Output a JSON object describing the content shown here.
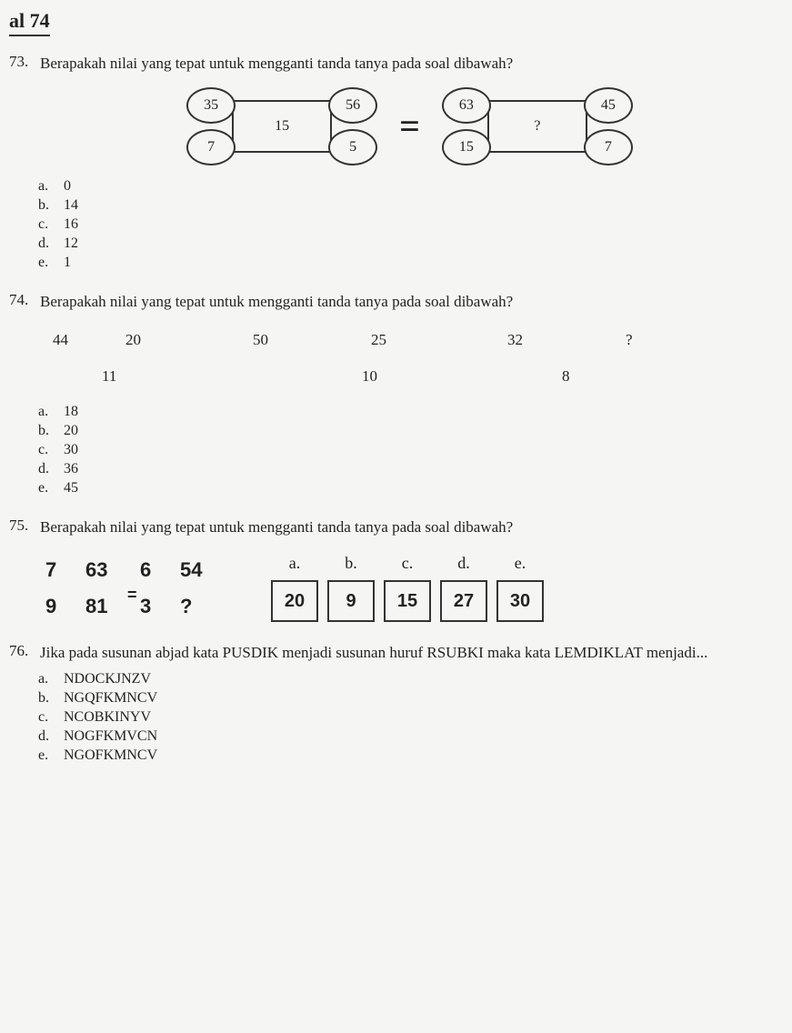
{
  "header": "al 74",
  "q73": {
    "num": "73.",
    "text": "Berapakah nilai yang tepat untuk mengganti tanda tanya pada soal dibawah?",
    "left": {
      "tl": "35",
      "bl": "7",
      "mid": "15",
      "tr": "56",
      "br": "5"
    },
    "eq": "=",
    "right": {
      "tl": "63",
      "bl": "15",
      "mid": "?",
      "tr": "45",
      "br": "7"
    },
    "options": [
      {
        "l": "a.",
        "v": "0"
      },
      {
        "l": "b.",
        "v": "14"
      },
      {
        "l": "c.",
        "v": "16"
      },
      {
        "l": "d.",
        "v": "12"
      },
      {
        "l": "e.",
        "v": "1"
      }
    ]
  },
  "q74": {
    "num": "74.",
    "text": "Berapakah nilai yang tepat untuk mengganti tanda tanya pada soal dibawah?",
    "row1": [
      "44",
      "20",
      "50",
      "25",
      "32",
      "?"
    ],
    "row2": [
      "11",
      "10",
      "8"
    ],
    "options": [
      {
        "l": "a.",
        "v": "18"
      },
      {
        "l": "b.",
        "v": "20"
      },
      {
        "l": "c.",
        "v": "30"
      },
      {
        "l": "d.",
        "v": "36"
      },
      {
        "l": "e.",
        "v": "45"
      }
    ]
  },
  "q75": {
    "num": "75.",
    "text": "Berapakah nilai yang tepat untuk mengganti tanda tanya pada soal dibawah?",
    "grid": [
      "7",
      "63",
      "6",
      "54",
      "9",
      "81",
      "3",
      "?"
    ],
    "eq": "=",
    "answers": [
      {
        "l": "a.",
        "v": "20"
      },
      {
        "l": "b.",
        "v": "9"
      },
      {
        "l": "c.",
        "v": "15"
      },
      {
        "l": "d.",
        "v": "27"
      },
      {
        "l": "e.",
        "v": "30"
      }
    ]
  },
  "q76": {
    "num": "76.",
    "text": "Jika pada susunan abjad kata PUSDIK menjadi susunan huruf RSUBKI maka kata LEMDIKLAT menjadi...",
    "options": [
      {
        "l": "a.",
        "v": "NDOCKJNZV"
      },
      {
        "l": "b.",
        "v": "NGQFKMNCV"
      },
      {
        "l": "c.",
        "v": "NCOBKINYV"
      },
      {
        "l": "d.",
        "v": "NOGFKMVCN"
      },
      {
        "l": "e.",
        "v": "NGOFKMNCV"
      }
    ]
  }
}
